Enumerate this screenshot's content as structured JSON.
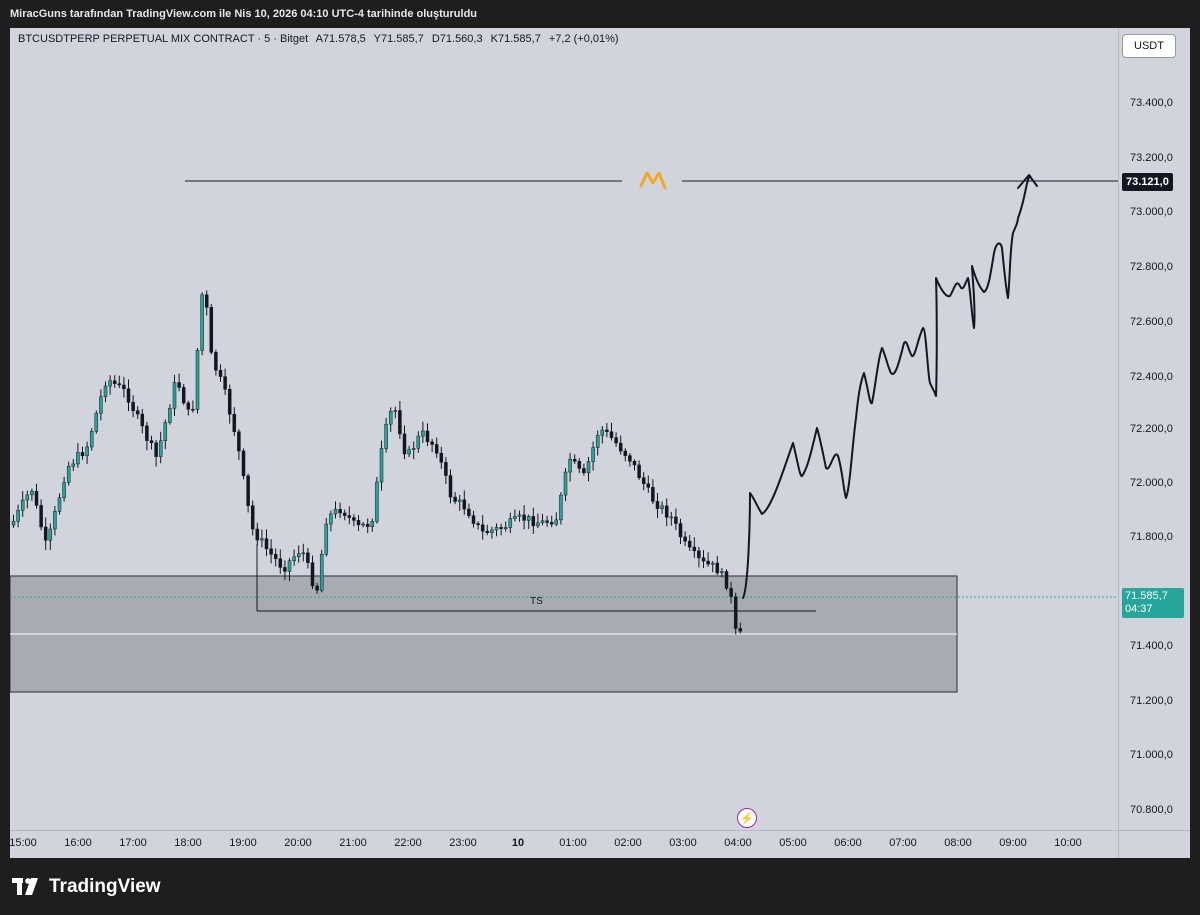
{
  "header": {
    "title": "MiracGuns tarafından TradingView.com ile Nis 10, 2026 04:10 UTC-4 tarihinde oluşturuldu"
  },
  "symbol": {
    "name": "BTCUSDTPERP PERPETUAL MIX CONTRACT · 5 · Bitget",
    "open": "A71.578,5",
    "high": "Y71.585,7",
    "low": "D71.560,3",
    "close": "K71.585,7",
    "change": "+7,2 (+0,01%)"
  },
  "currency_button": "USDT",
  "y_axis": [
    "73.400,0",
    "73.200,0",
    "73.000,0",
    "72.800,0",
    "72.600,0",
    "72.400,0",
    "72.200,0",
    "72.000,0",
    "71.800,0",
    "71.400,0",
    "71.200,0",
    "71.000,0",
    "70.800,0"
  ],
  "x_axis": [
    "15:00",
    "16:00",
    "17:00",
    "18:00",
    "19:00",
    "20:00",
    "21:00",
    "22:00",
    "23:00",
    "10",
    "01:00",
    "02:00",
    "03:00",
    "04:00",
    "05:00",
    "06:00",
    "07:00",
    "08:00",
    "09:00",
    "10:00"
  ],
  "level_label": "73.121,0",
  "last_price": {
    "value": "71.585,7",
    "countdown": "04:37"
  },
  "zone_label": "TS",
  "footer": {
    "brand": "TradingView"
  },
  "colors": {
    "up": "#26a69a",
    "down": "#131722",
    "zone": "#a9abb2",
    "level": "#131722"
  },
  "icons": [
    "lightning-icon",
    "tradingview-logo-icon",
    "m-marker-icon"
  ]
}
